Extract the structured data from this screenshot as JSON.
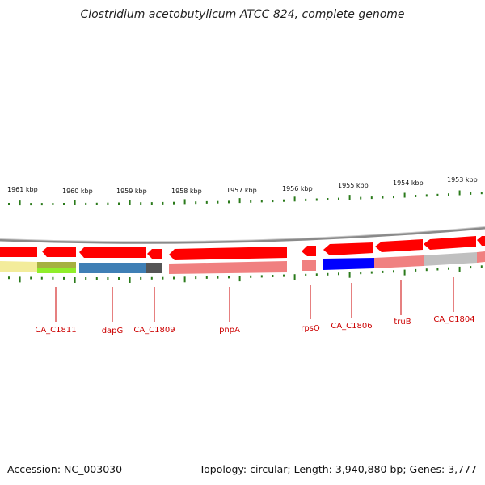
{
  "title": "Clostridium acetobutylicum ATCC 824, complete genome",
  "accession": "Accession: NC_003030",
  "topology": "Topology: circular; Length: 3,940,880 bp; Genes: 3,777",
  "scale_labels": [
    "1961 kbp",
    "1960 kbp",
    "1959 kbp",
    "1958 kbp",
    "1957 kbp",
    "1956 kbp",
    "1955 kbp",
    "1954 kbp",
    "1953 kbp"
  ],
  "gene_labels": [
    "CA_C1811",
    "dapG",
    "CA_C1809",
    "pnpA",
    "rpsO",
    "CA_C1806",
    "truB",
    "CA_C1804"
  ],
  "colors": {
    "gene_arrow": "#ff0000",
    "backbone": "#888888",
    "tick": "#2a7a1a",
    "label": "#cc0000"
  }
}
